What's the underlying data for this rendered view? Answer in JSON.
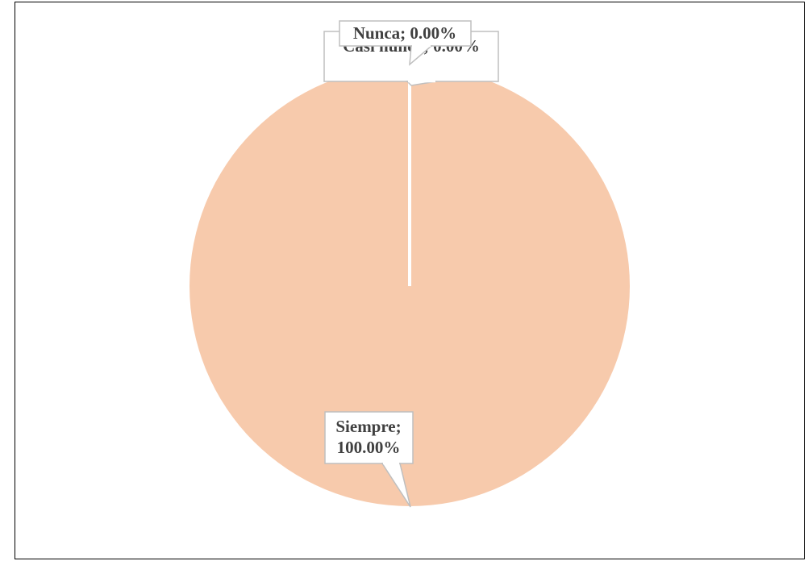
{
  "chart_data": {
    "type": "pie",
    "title": "",
    "labels": [
      "Siempre",
      "Casi nunca",
      "Nunca"
    ],
    "values": [
      100.0,
      0.0,
      0.0
    ],
    "unit": "%",
    "data_labels": [
      "Siempre; 100.00%",
      "Casi nunca; 0.00%",
      "Nunca; 0.00%"
    ],
    "colors": [
      "#f7caac",
      "#f7caac",
      "#f7caac"
    ],
    "legend": "none"
  },
  "colors": {
    "slice": "#f7caac",
    "label_text": "#404040",
    "label_border": "#bfbfbf",
    "frame": "#000000"
  }
}
